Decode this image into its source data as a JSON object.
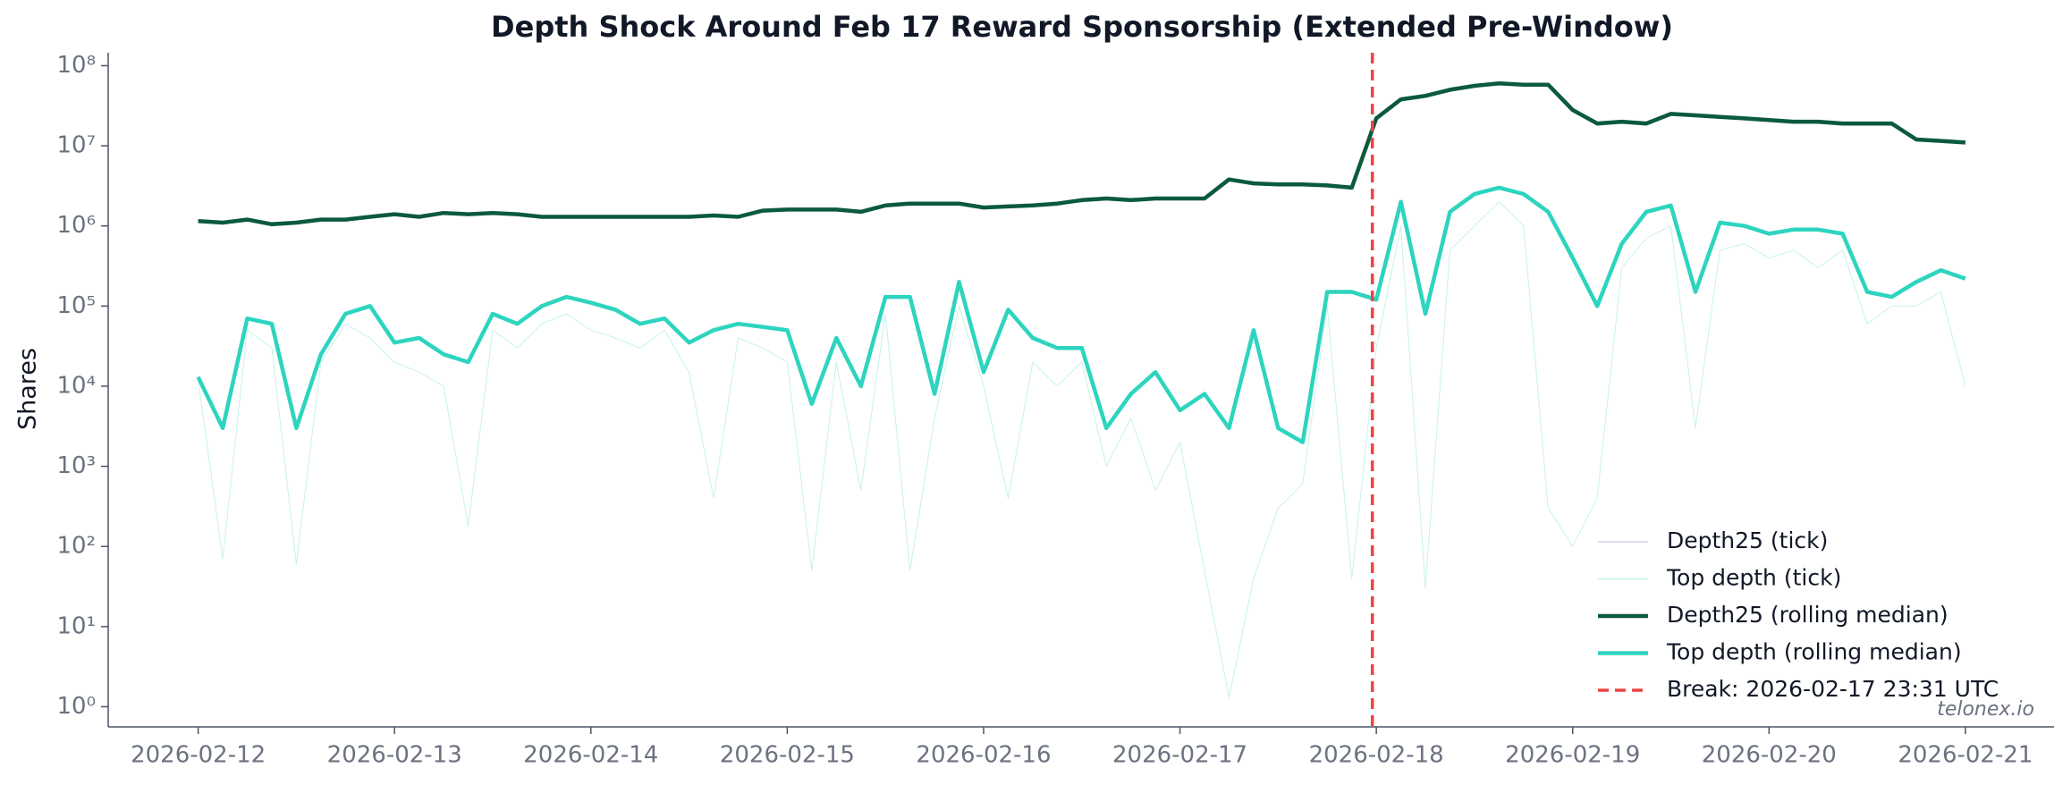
{
  "chart_data": {
    "type": "line",
    "title": "Depth Shock Around Feb 17 Reward Sponsorship (Extended Pre-Window)",
    "y_label": "Shares",
    "watermark": "telonex.io",
    "log_y": true,
    "legend": "lower right",
    "xlim": [
      "2026-02-11 13:00",
      "2026-02-21 10:50"
    ],
    "xticks": [
      "2026-02-12",
      "2026-02-13",
      "2026-02-14",
      "2026-02-15",
      "2026-02-16",
      "2026-02-17",
      "2026-02-18",
      "2026-02-19",
      "2026-02-20",
      "2026-02-21"
    ],
    "ylim": [
      0.56,
      145000000
    ],
    "yticks": [
      {
        "value": 1,
        "label": "10⁰"
      },
      {
        "value": 10,
        "label": "10¹"
      },
      {
        "value": 100,
        "label": "10²"
      },
      {
        "value": 1000,
        "label": "10³"
      },
      {
        "value": 10000,
        "label": "10⁴"
      },
      {
        "value": 100000,
        "label": "10⁵"
      },
      {
        "value": 1000000,
        "label": "10⁶"
      },
      {
        "value": 10000000,
        "label": "10⁷"
      },
      {
        "value": 100000000,
        "label": "10⁸"
      }
    ],
    "x": [
      "2026-02-12 00:00",
      "2026-02-12 03:00",
      "2026-02-12 06:00",
      "2026-02-12 09:00",
      "2026-02-12 12:00",
      "2026-02-12 15:00",
      "2026-02-12 18:00",
      "2026-02-12 21:00",
      "2026-02-13 00:00",
      "2026-02-13 03:00",
      "2026-02-13 06:00",
      "2026-02-13 09:00",
      "2026-02-13 12:00",
      "2026-02-13 15:00",
      "2026-02-13 18:00",
      "2026-02-13 21:00",
      "2026-02-14 00:00",
      "2026-02-14 03:00",
      "2026-02-14 06:00",
      "2026-02-14 09:00",
      "2026-02-14 12:00",
      "2026-02-14 15:00",
      "2026-02-14 18:00",
      "2026-02-14 21:00",
      "2026-02-15 00:00",
      "2026-02-15 03:00",
      "2026-02-15 06:00",
      "2026-02-15 09:00",
      "2026-02-15 12:00",
      "2026-02-15 15:00",
      "2026-02-15 18:00",
      "2026-02-15 21:00",
      "2026-02-16 00:00",
      "2026-02-16 03:00",
      "2026-02-16 06:00",
      "2026-02-16 09:00",
      "2026-02-16 12:00",
      "2026-02-16 15:00",
      "2026-02-16 18:00",
      "2026-02-16 21:00",
      "2026-02-17 00:00",
      "2026-02-17 03:00",
      "2026-02-17 06:00",
      "2026-02-17 09:00",
      "2026-02-17 12:00",
      "2026-02-17 15:00",
      "2026-02-17 18:00",
      "2026-02-17 21:00",
      "2026-02-18 00:00",
      "2026-02-18 03:00",
      "2026-02-18 06:00",
      "2026-02-18 09:00",
      "2026-02-18 12:00",
      "2026-02-18 15:00",
      "2026-02-18 18:00",
      "2026-02-18 21:00",
      "2026-02-19 00:00",
      "2026-02-19 03:00",
      "2026-02-19 06:00",
      "2026-02-19 09:00",
      "2026-02-19 12:00",
      "2026-02-19 15:00",
      "2026-02-19 18:00",
      "2026-02-19 21:00",
      "2026-02-20 00:00",
      "2026-02-20 03:00",
      "2026-02-20 06:00",
      "2026-02-20 09:00",
      "2026-02-20 12:00",
      "2026-02-20 15:00",
      "2026-02-20 18:00",
      "2026-02-20 21:00",
      "2026-02-21 00:00"
    ],
    "series": [
      {
        "name": "Depth25 (tick)",
        "color": "#cbd5e1",
        "linewidth": 1,
        "values": [
          1100000,
          1050000,
          1150000,
          1000000,
          1050000,
          1150000,
          1150000,
          1250000,
          1350000,
          1250000,
          1400000,
          1350000,
          1400000,
          1350000,
          1250000,
          1250000,
          1250000,
          1250000,
          1250000,
          1250000,
          1250000,
          1300000,
          1250000,
          1500000,
          1550000,
          1550000,
          1550000,
          1450000,
          1750000,
          1850000,
          1850000,
          1850000,
          1650000,
          1700000,
          1750000,
          1850000,
          2000000,
          2100000,
          2000000,
          2100000,
          2100000,
          2100000,
          3600000,
          3300000,
          3200000,
          3200000,
          3100000,
          2900000,
          21000000,
          36000000,
          40000000,
          48000000,
          54000000,
          58000000,
          56000000,
          56000000,
          27000000,
          18000000,
          19000000,
          18000000,
          24000000,
          23000000,
          22000000,
          21000000,
          20000000,
          19000000,
          19000000,
          18000000,
          18000000,
          18000000,
          11500000,
          11000000,
          10500000
        ]
      },
      {
        "name": "Top depth (tick)",
        "color": "#c7f2ea",
        "linewidth": 1,
        "values": [
          12000,
          70,
          50000,
          30000,
          60,
          20000,
          60000,
          40000,
          20000,
          15000,
          10000,
          180,
          50000,
          30000,
          60000,
          80000,
          50000,
          40000,
          30000,
          50000,
          15000,
          400,
          40000,
          30000,
          20000,
          50,
          20000,
          500,
          80000,
          50,
          4000,
          100000,
          10000,
          400,
          20000,
          10000,
          20000,
          1000,
          4000,
          500,
          2000,
          50,
          1.3,
          40,
          300,
          600,
          100000,
          40,
          30000,
          1000000,
          30,
          500000,
          1000000,
          2000000,
          1000000,
          300,
          100,
          400,
          300000,
          700000,
          1000000,
          3000,
          500000,
          600000,
          400000,
          500000,
          300000,
          500000,
          60000,
          100000,
          100000,
          150000,
          10000
        ]
      },
      {
        "name": "Depth25 (rolling median)",
        "color": "#0b5a3c",
        "linewidth": 4.5,
        "values": [
          1150000,
          1100000,
          1200000,
          1050000,
          1100000,
          1200000,
          1200000,
          1300000,
          1400000,
          1300000,
          1450000,
          1400000,
          1450000,
          1400000,
          1300000,
          1300000,
          1300000,
          1300000,
          1300000,
          1300000,
          1300000,
          1350000,
          1300000,
          1550000,
          1600000,
          1600000,
          1600000,
          1500000,
          1800000,
          1900000,
          1900000,
          1900000,
          1700000,
          1750000,
          1800000,
          1900000,
          2100000,
          2200000,
          2100000,
          2200000,
          2200000,
          2200000,
          3800000,
          3400000,
          3300000,
          3300000,
          3200000,
          3000000,
          22000000,
          38000000,
          42000000,
          50000000,
          56000000,
          60000000,
          58000000,
          58000000,
          28000000,
          19000000,
          20000000,
          19000000,
          25000000,
          24000000,
          23000000,
          22000000,
          21000000,
          20000000,
          20000000,
          19000000,
          19000000,
          19000000,
          12000000,
          11500000,
          11000000
        ]
      },
      {
        "name": "Top depth (rolling median)",
        "color": "#2dd4bf",
        "linewidth": 4.5,
        "values": [
          13000,
          3000,
          70000,
          60000,
          3000,
          25000,
          80000,
          100000,
          35000,
          40000,
          25000,
          20000,
          80000,
          60000,
          100000,
          130000,
          110000,
          90000,
          60000,
          70000,
          35000,
          50000,
          60000,
          55000,
          50000,
          6000,
          40000,
          10000,
          130000,
          130000,
          8000,
          200000,
          15000,
          90000,
          40000,
          30000,
          30000,
          3000,
          8000,
          15000,
          5000,
          8000,
          3000,
          50000,
          3000,
          2000,
          150000,
          150000,
          120000,
          2000000,
          80000,
          1500000,
          2500000,
          3000000,
          2500000,
          1500000,
          400000,
          100000,
          600000,
          1500000,
          1800000,
          150000,
          1100000,
          1000000,
          800000,
          900000,
          900000,
          800000,
          150000,
          130000,
          200000,
          280000,
          220000
        ]
      }
    ],
    "break": {
      "x": "2026-02-17 23:31",
      "name": "Break: 2026-02-17 23:31 UTC",
      "color": "#ef4444"
    }
  }
}
